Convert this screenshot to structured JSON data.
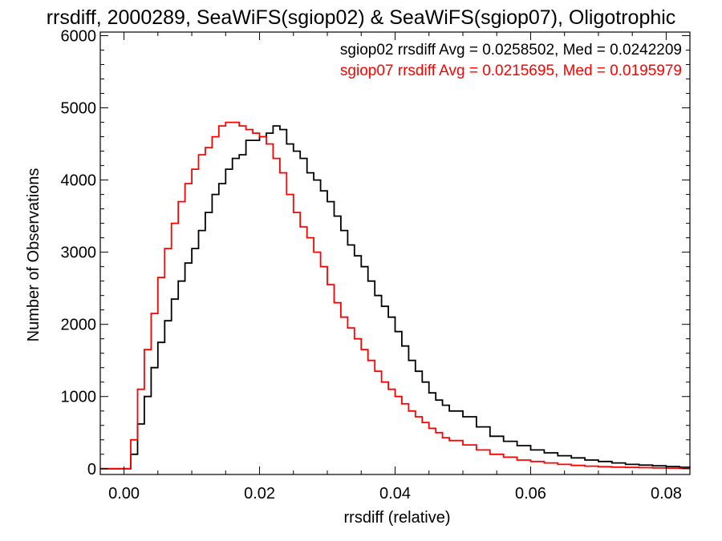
{
  "chart_data": {
    "type": "line",
    "title": "rrsdiff, 2000289, SeaWiFS(sgiop02) & SeaWiFS(sgiop07), Oligotrophic",
    "xlabel": "rrsdiff (relative)",
    "ylabel": "Number of Observations",
    "xlim": [
      -0.0035,
      0.0835
    ],
    "ylim": [
      -80,
      6050
    ],
    "x_ticks": [
      0.0,
      0.02,
      0.04,
      0.06,
      0.08
    ],
    "x_tick_labels": [
      "0.00",
      "0.02",
      "0.04",
      "0.06",
      "0.08"
    ],
    "y_ticks": [
      0,
      1000,
      2000,
      3000,
      4000,
      5000,
      6000
    ],
    "y_tick_labels": [
      "0",
      "1000",
      "2000",
      "3000",
      "4000",
      "5000",
      "6000"
    ],
    "grid": false,
    "annotations": [
      {
        "text": "sgiop02 rrsdiff Avg = 0.0258502, Med = 0.0242209",
        "color": "#000000"
      },
      {
        "text": "sgiop07 rrsdiff Avg = 0.0215695, Med = 0.0195979",
        "color": "#ff0000"
      }
    ],
    "series": [
      {
        "color": "#000000",
        "x": [
          -0.0035,
          0.0,
          0.001,
          0.002,
          0.003,
          0.004,
          0.005,
          0.006,
          0.007,
          0.008,
          0.009,
          0.01,
          0.011,
          0.012,
          0.013,
          0.014,
          0.015,
          0.016,
          0.017,
          0.018,
          0.019,
          0.02,
          0.021,
          0.022,
          0.023,
          0.024,
          0.025,
          0.026,
          0.027,
          0.028,
          0.029,
          0.03,
          0.031,
          0.032,
          0.033,
          0.034,
          0.035,
          0.036,
          0.037,
          0.038,
          0.039,
          0.04,
          0.041,
          0.042,
          0.043,
          0.044,
          0.045,
          0.046,
          0.047,
          0.048,
          0.05,
          0.052,
          0.054,
          0.056,
          0.058,
          0.06,
          0.062,
          0.064,
          0.066,
          0.068,
          0.07,
          0.072,
          0.074,
          0.076,
          0.078,
          0.08,
          0.082,
          0.0835
        ],
        "y": [
          0,
          0,
          200,
          620,
          1000,
          1400,
          1750,
          2050,
          2350,
          2600,
          2850,
          3050,
          3300,
          3550,
          3800,
          3950,
          4150,
          4300,
          4350,
          4550,
          4550,
          4600,
          4650,
          4750,
          4700,
          4500,
          4400,
          4300,
          4100,
          4000,
          3850,
          3700,
          3500,
          3300,
          3100,
          2950,
          2800,
          2600,
          2400,
          2250,
          2100,
          1900,
          1700,
          1500,
          1350,
          1200,
          1050,
          950,
          880,
          800,
          720,
          580,
          450,
          380,
          320,
          260,
          220,
          180,
          150,
          120,
          100,
          80,
          60,
          50,
          40,
          30,
          20,
          15
        ]
      },
      {
        "color": "#ff0000",
        "x": [
          -0.0035,
          0.0,
          0.001,
          0.002,
          0.003,
          0.004,
          0.005,
          0.006,
          0.007,
          0.008,
          0.009,
          0.01,
          0.011,
          0.012,
          0.013,
          0.014,
          0.015,
          0.016,
          0.017,
          0.018,
          0.019,
          0.02,
          0.021,
          0.022,
          0.023,
          0.024,
          0.025,
          0.026,
          0.027,
          0.028,
          0.029,
          0.03,
          0.031,
          0.032,
          0.033,
          0.034,
          0.035,
          0.036,
          0.037,
          0.038,
          0.039,
          0.04,
          0.041,
          0.042,
          0.043,
          0.044,
          0.045,
          0.046,
          0.047,
          0.048,
          0.05,
          0.052,
          0.054,
          0.056,
          0.058,
          0.06,
          0.062,
          0.064,
          0.066,
          0.068,
          0.07,
          0.072,
          0.074,
          0.076,
          0.078,
          0.08,
          0.082,
          0.0835
        ],
        "y": [
          0,
          0,
          400,
          1100,
          1650,
          2150,
          2650,
          3050,
          3400,
          3700,
          3950,
          4150,
          4350,
          4450,
          4600,
          4750,
          4800,
          4800,
          4750,
          4700,
          4650,
          4600,
          4500,
          4300,
          4100,
          3800,
          3550,
          3350,
          3200,
          3000,
          2800,
          2550,
          2300,
          2100,
          1950,
          1800,
          1650,
          1500,
          1350,
          1200,
          1100,
          1000,
          900,
          800,
          720,
          640,
          560,
          500,
          430,
          390,
          330,
          260,
          200,
          160,
          120,
          100,
          80,
          60,
          45,
          35,
          28,
          22,
          18,
          14,
          10,
          8,
          6,
          5
        ]
      }
    ]
  }
}
